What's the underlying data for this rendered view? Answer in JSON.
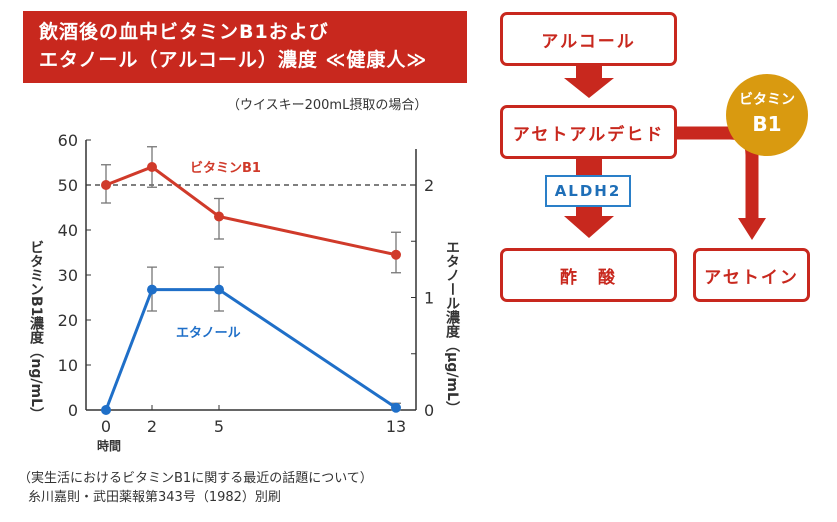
{
  "title": {
    "line1": "飲酒後の血中ビタミンB1および",
    "line2": "エタノール（アルコール）濃度 ≪健康人≫"
  },
  "subtitle": "（ウイスキー200mL摂取の場合）",
  "source": {
    "line1": "（実生活におけるビタミンB1に関する最近の話題について）",
    "line2": "糸川嘉則・武田薬報第343号（1982）別刷"
  },
  "chart_data": {
    "type": "line",
    "x": [
      0,
      2,
      5,
      13
    ],
    "x_ticks": [
      "0",
      "2",
      "5",
      "13"
    ],
    "xlabel": "時間",
    "ylabel_left": "ビタミンB1濃度（ng/mL）",
    "ylabel_right": "エタノール濃度（μg/mL）",
    "ylim_left": [
      0,
      60
    ],
    "yticks_left": [
      "0",
      "10",
      "20",
      "30",
      "40",
      "50",
      "60"
    ],
    "ylim_right": [
      0,
      2.4
    ],
    "yticks_right": [
      "0",
      "1",
      "2"
    ],
    "reference_line": {
      "left_value": 50,
      "style": "dashed"
    },
    "series": [
      {
        "name": "ビタミンB1",
        "axis": "left",
        "color": "#d03a2a",
        "values": [
          50,
          54,
          43,
          34.5
        ],
        "err_low": [
          46,
          49.5,
          38,
          30.5
        ],
        "err_high": [
          54.5,
          58.5,
          47,
          39.5
        ]
      },
      {
        "name": "エタノール",
        "axis": "right",
        "color": "#1f6fc8",
        "values": [
          0,
          1.07,
          1.07,
          0.02
        ],
        "err_low": [
          0,
          0.88,
          0.88,
          0
        ],
        "err_high": [
          0,
          1.27,
          1.27,
          0.06
        ]
      }
    ]
  },
  "diagram": {
    "alcohol": "アルコール",
    "acetaldehyde": "アセトアルデヒド",
    "enzyme": "ALDH2",
    "acetic_acid": "酢　酸",
    "acetoin": "アセトイン",
    "vitamin_line1": "ビタミン",
    "vitamin_line2": "B1",
    "accent": "#c8281e",
    "vitamin_color": "#d99a10"
  }
}
